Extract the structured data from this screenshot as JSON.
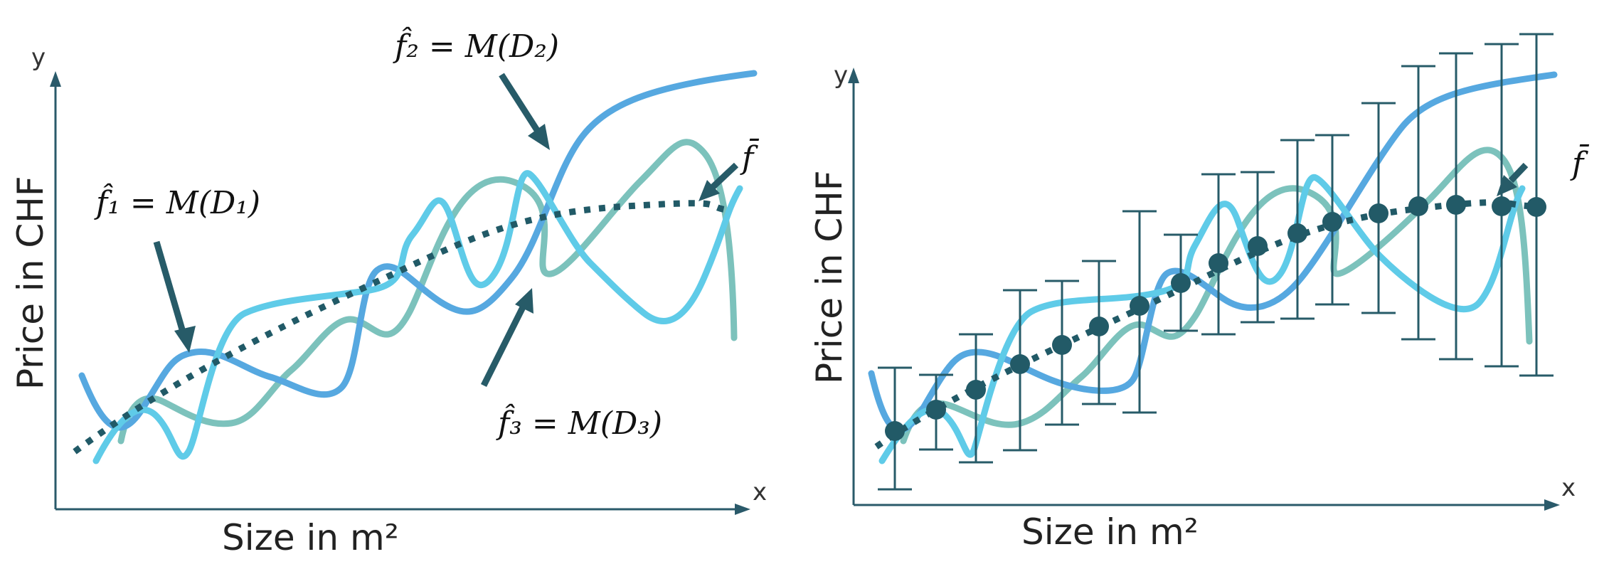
{
  "colors": {
    "f1": "#56a8e0",
    "f2": "#5fcbe8",
    "f3": "#7cc2bc",
    "mean": "#215a67",
    "arrow": "#275b68",
    "axis": "#2a5a6a"
  },
  "left_panel": {
    "axis_y": "y",
    "axis_x": "x",
    "ylabel": "Price in CHF",
    "xlabel": "Size in m²",
    "labels": {
      "f1": "f̂₁ = M(D₁)",
      "f2": "f̂₂ = M(D₂)",
      "f3": "f̂₃ = M(D₃)",
      "mean": "f̄"
    }
  },
  "right_panel": {
    "axis_y": "y",
    "axis_x": "x",
    "ylabel": "Price in CHF",
    "xlabel": "Size in m²",
    "labels": {
      "mean": "f̄"
    }
  }
}
